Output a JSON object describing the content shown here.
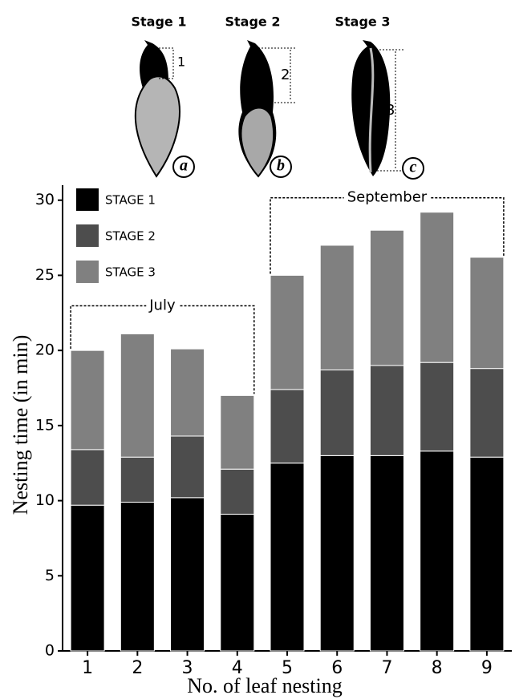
{
  "illustration": {
    "panels": [
      {
        "title": "Stage 1",
        "measure": "1",
        "letter": "a"
      },
      {
        "title": "Stage 2",
        "measure": "2",
        "letter": "b"
      },
      {
        "title": "Stage 3",
        "measure": "3",
        "letter": "c"
      }
    ]
  },
  "chart_data": {
    "type": "stacked_bar",
    "x_label": "No. of leaf nesting",
    "y_label": "Nesting time (in min)",
    "categories": [
      "1",
      "2",
      "3",
      "4",
      "5",
      "6",
      "7",
      "8",
      "9"
    ],
    "series": [
      {
        "name": "STAGE 1",
        "color": "#000000",
        "values": [
          9.7,
          9.9,
          10.2,
          9.1,
          12.5,
          13.0,
          13.0,
          13.3,
          12.9
        ]
      },
      {
        "name": "STAGE 2",
        "color": "#4d4d4d",
        "values": [
          3.7,
          3.0,
          4.1,
          3.0,
          4.9,
          5.7,
          6.0,
          5.9,
          5.9
        ]
      },
      {
        "name": "STAGE 3",
        "color": "#808080",
        "values": [
          6.6,
          8.2,
          5.8,
          4.9,
          7.6,
          8.3,
          9.0,
          10.0,
          7.4
        ]
      }
    ],
    "groups": [
      "July",
      "September"
    ],
    "ylim": [
      0,
      31
    ],
    "yticks": [
      0,
      5,
      10,
      15,
      20,
      25,
      30
    ],
    "legend": "upper-left"
  }
}
